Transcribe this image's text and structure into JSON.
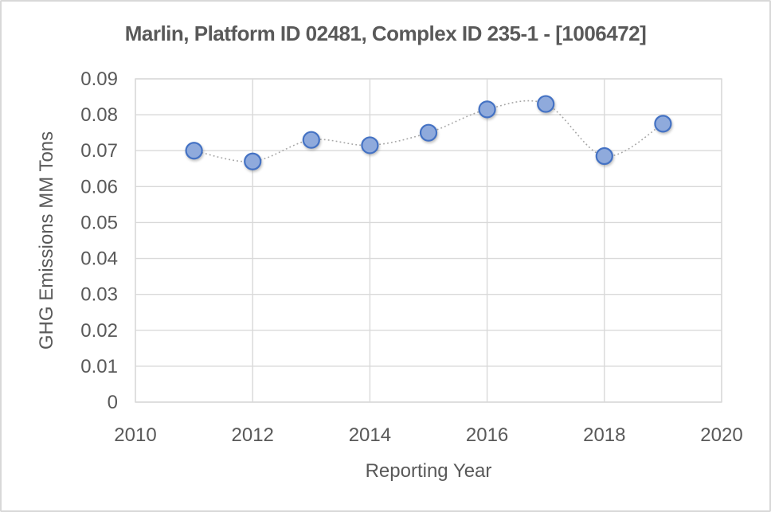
{
  "chart_data": {
    "type": "scatter",
    "title": "Marlin, Platform ID 02481, Complex ID 235-1 - [1006472]",
    "xlabel": "Reporting Year",
    "ylabel": "GHG Emissions MM Tons",
    "x": [
      2011,
      2012,
      2013,
      2014,
      2015,
      2016,
      2017,
      2018,
      2019
    ],
    "values": [
      0.07,
      0.067,
      0.073,
      0.0715,
      0.075,
      0.0815,
      0.083,
      0.0685,
      0.0775
    ],
    "xlim": [
      2010,
      2020
    ],
    "ylim": [
      0,
      0.09
    ],
    "x_ticks": [
      "2010",
      "2012",
      "2014",
      "2016",
      "2018",
      "2020"
    ],
    "y_ticks": [
      "0.09",
      "0.08",
      "0.07",
      "0.06",
      "0.05",
      "0.04",
      "0.03",
      "0.02",
      "0.01",
      "0"
    ],
    "grid": true,
    "legend": "none",
    "marker": "circle",
    "line_style": "dotted-smooth",
    "colors": {
      "marker_fill": "#8FAADC",
      "marker_stroke": "#4472C4",
      "connector": "#A6A6A6",
      "grid": "#D9D9D9",
      "text": "#595959",
      "background": "#FFFFFF",
      "chart_border": "#D8D8D8"
    }
  }
}
